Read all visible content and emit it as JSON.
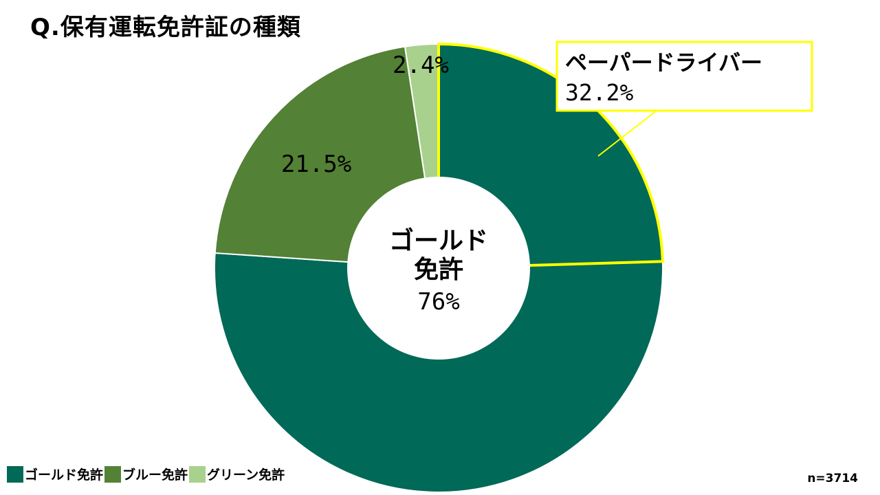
{
  "chart_data": {
    "type": "pie",
    "title": "Q.保有運転免許証の種類",
    "categories": [
      "ゴールド免許",
      "ブルー免許",
      "グリーン免許"
    ],
    "values": [
      76,
      21.5,
      2.4
    ],
    "value_labels": [
      "",
      "21.5%",
      "2.4%"
    ],
    "colors": [
      "#006957",
      "#538135",
      "#a9d18e"
    ],
    "sub_segment": {
      "label": "ペーパードライバー",
      "value_label": "32.2%",
      "parent": "ゴールド免許",
      "start_value": 0,
      "end_value": 24.5,
      "highlight_color": "#ffff00"
    },
    "center_label": {
      "lines": [
        "ゴールド",
        "免許",
        "76%"
      ]
    },
    "legend": {
      "position": "bottom-left",
      "entries": [
        "ゴールド免許",
        "ブルー免許",
        "グリーン免許"
      ]
    },
    "sample_size": "n=3714"
  }
}
